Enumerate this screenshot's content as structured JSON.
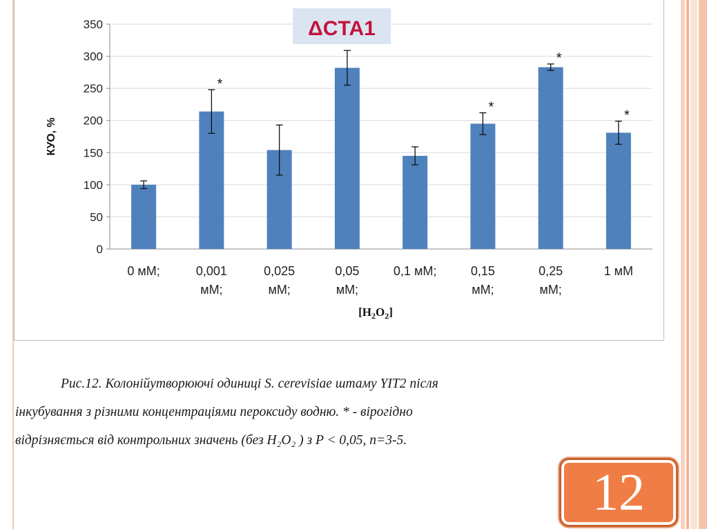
{
  "chart_data": {
    "type": "bar",
    "title": "ΔCTA1",
    "ylabel": "КУО, %",
    "xlabel": "[H2O2]",
    "ylim": [
      0,
      350
    ],
    "yticks": [
      0,
      50,
      100,
      150,
      200,
      250,
      300,
      350
    ],
    "categories": [
      [
        "0 мМ;"
      ],
      [
        "0,001",
        "мМ;"
      ],
      [
        "0,025",
        "мМ;"
      ],
      [
        "0,05",
        "мМ;"
      ],
      [
        "0,1 мМ;"
      ],
      [
        "0,15",
        "мМ;"
      ],
      [
        "0,25",
        "мМ;"
      ],
      [
        "1 мМ"
      ]
    ],
    "values": [
      100,
      214,
      154,
      282,
      145,
      195,
      283,
      181
    ],
    "errors": [
      6,
      34,
      39,
      27,
      14,
      17,
      5,
      18
    ],
    "significant": [
      false,
      true,
      false,
      true,
      false,
      true,
      true,
      true
    ],
    "significance_marker": "*",
    "grid": true,
    "colors": {
      "bar": "#4f81bd",
      "title_text": "#c0143c",
      "title_bg": "#dbe5f1",
      "grid": "#d9d9d9"
    }
  },
  "caption": {
    "line1": "Рис.12. Колонійутворюючі одиниці S. cerevisiae штаму YIT2 після",
    "line2": "інкубування з різними концентраціями пероксиду водню. * - вірогідно",
    "line3": "відрізняється від контрольних значень (без H₂O₂ ) з P < 0,05, n=3-5."
  },
  "page_number": "12",
  "colors": {
    "accent": "#f07d45",
    "stripe_light": "#fbe3d6",
    "stripe_mid": "#f6c4aa"
  }
}
